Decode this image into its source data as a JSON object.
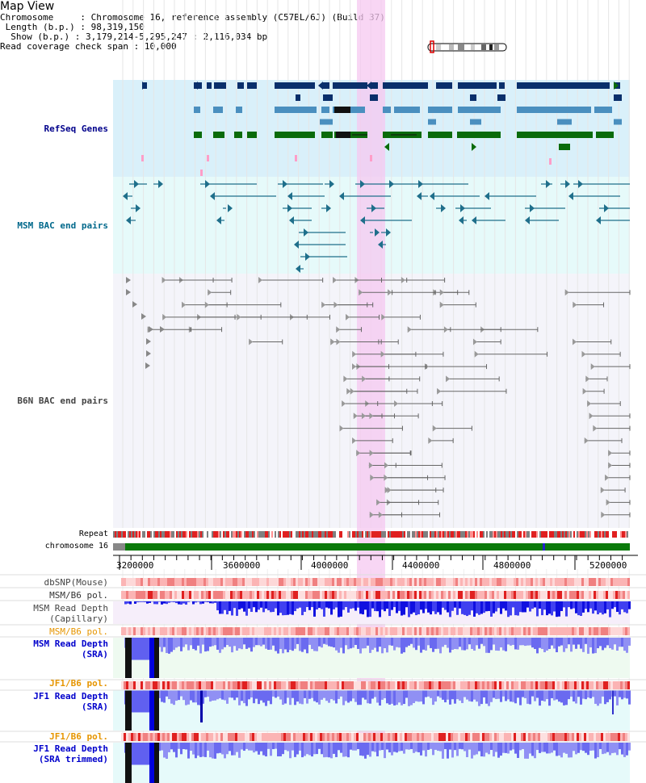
{
  "title": "Map View",
  "info": {
    "chromosome_key": "Chromosome",
    "chromosome_val": "Chromosome 16, reference assembly (C57BL/6J) (Build 37)",
    "length_key": "Length (b.p.)",
    "length_val": "98,319,150",
    "show_key": "Show (b.p.)",
    "show_val": "3,179,214-5,295,247 : 2,116,034 bp",
    "coverage_key": "Read coverage check span",
    "coverage_val": "10,000"
  },
  "tracks": {
    "refseq": "RefSeq Genes",
    "msm_bac": "MSM BAC end pairs",
    "b6n_bac": "B6N BAC end pairs",
    "repeat": "Repeat",
    "chromosome": "chromosome 16",
    "dbsnp": "dbSNP(Mouse)",
    "msm_b6_pol_1": "MSM/B6 pol.",
    "msm_depth_cap_1": "MSM Read Depth",
    "msm_depth_cap_2": "(Capillary)",
    "msm_b6_pol_2": "MSM/B6 pol.",
    "msm_depth_sra_1": "MSM Read Depth",
    "msm_depth_sra_2": "(SRA)",
    "jf1_b6_pol_1": "JF1/B6 pol.",
    "jf1_depth_sra_1": "JF1 Read Depth",
    "jf1_depth_sra_2": "(SRA)",
    "jf1_b6_pol_2": "JF1/B6 pol.",
    "jf1_depth_trim_1": "JF1 Read Depth",
    "jf1_depth_trim_2": "(SRA trimmed)"
  },
  "axis": {
    "ticks": [
      "3200000",
      "3600000",
      "4000000",
      "4400000",
      "4800000",
      "5200000"
    ]
  },
  "colors": {
    "refseq_bg": "#d9f0fa",
    "msm_bac_bg": "#e6fafa",
    "b6n_bac_bg": "#f4f4fa",
    "highlight": "#f5c8f0",
    "refseq_label": "#00008b",
    "msm_bac_label": "#00688b",
    "b6n_bac_label": "#444444",
    "pol_orange": "#e69500",
    "depth_blue": "#0000cc"
  }
}
